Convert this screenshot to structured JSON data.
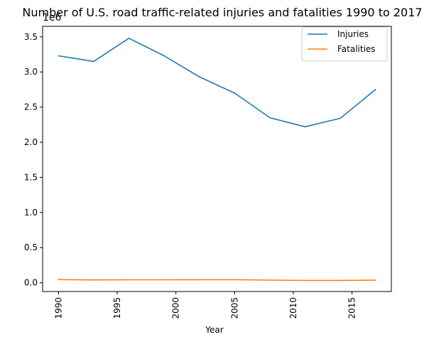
{
  "chart_data": {
    "type": "line",
    "title": "Number of U.S. road traffic-related injuries and fatalities 1990 to 2017",
    "xlabel": "Year",
    "ylabel": "",
    "offset_text": "1e6",
    "xlim": [
      1988.65,
      2018.35
    ],
    "ylim": [
      -125000,
      3650000
    ],
    "x_ticks": [
      1990,
      1995,
      2000,
      2005,
      2010,
      2015
    ],
    "y_ticks": [
      0,
      500000,
      1000000,
      1500000,
      2000000,
      2500000,
      3000000,
      3500000
    ],
    "y_tick_labels": [
      "0.0",
      "0.5",
      "1.0",
      "1.5",
      "2.0",
      "2.5",
      "3.0",
      "3.5"
    ],
    "grid": false,
    "legend_position": "top-right",
    "x": [
      1990,
      1993,
      1996,
      1999,
      2002,
      2005,
      2008,
      2011,
      2014,
      2017
    ],
    "series": [
      {
        "name": "Injuries",
        "color": "#1f77b4",
        "values": [
          3230000,
          3150000,
          3480000,
          3230000,
          2930000,
          2700000,
          2350000,
          2220000,
          2340000,
          2750000
        ]
      },
      {
        "name": "Fatalities",
        "color": "#ff7f0e",
        "values": [
          44600,
          40150,
          41817,
          41717,
          43005,
          43510,
          37423,
          32479,
          32744,
          37133
        ]
      }
    ]
  }
}
